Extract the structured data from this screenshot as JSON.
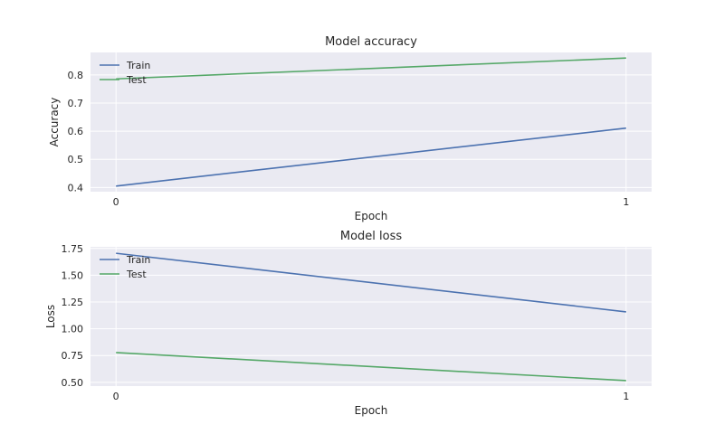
{
  "chart_data": [
    {
      "type": "line",
      "title": "Model accuracy",
      "xlabel": "Epoch",
      "ylabel": "Accuracy",
      "x": [
        0,
        1
      ],
      "xticks": [
        0,
        1
      ],
      "xlim": [
        -0.05,
        1.05
      ],
      "yticks": [
        0.4,
        0.5,
        0.6,
        0.7,
        0.8
      ],
      "ylim": [
        0.385,
        0.88
      ],
      "grid": true,
      "legend": "top-left",
      "series": [
        {
          "name": "Train",
          "values": [
            0.405,
            0.611
          ],
          "color": "#4c72b0"
        },
        {
          "name": "Test",
          "values": [
            0.786,
            0.86
          ],
          "color": "#55a868"
        }
      ]
    },
    {
      "type": "line",
      "title": "Model loss",
      "xlabel": "Epoch",
      "ylabel": "Loss",
      "x": [
        0,
        1
      ],
      "xticks": [
        0,
        1
      ],
      "xlim": [
        -0.05,
        1.05
      ],
      "yticks": [
        0.5,
        0.75,
        1.0,
        1.25,
        1.5,
        1.75
      ],
      "yticklabels": [
        "0.50",
        "0.75",
        "1.00",
        "1.25",
        "1.50",
        "1.75"
      ],
      "ylim": [
        0.465,
        1.765
      ],
      "grid": true,
      "legend": "top-left",
      "series": [
        {
          "name": "Train",
          "values": [
            1.705,
            1.158
          ],
          "color": "#4c72b0"
        },
        {
          "name": "Test",
          "values": [
            0.778,
            0.516
          ],
          "color": "#55a868"
        }
      ]
    }
  ]
}
